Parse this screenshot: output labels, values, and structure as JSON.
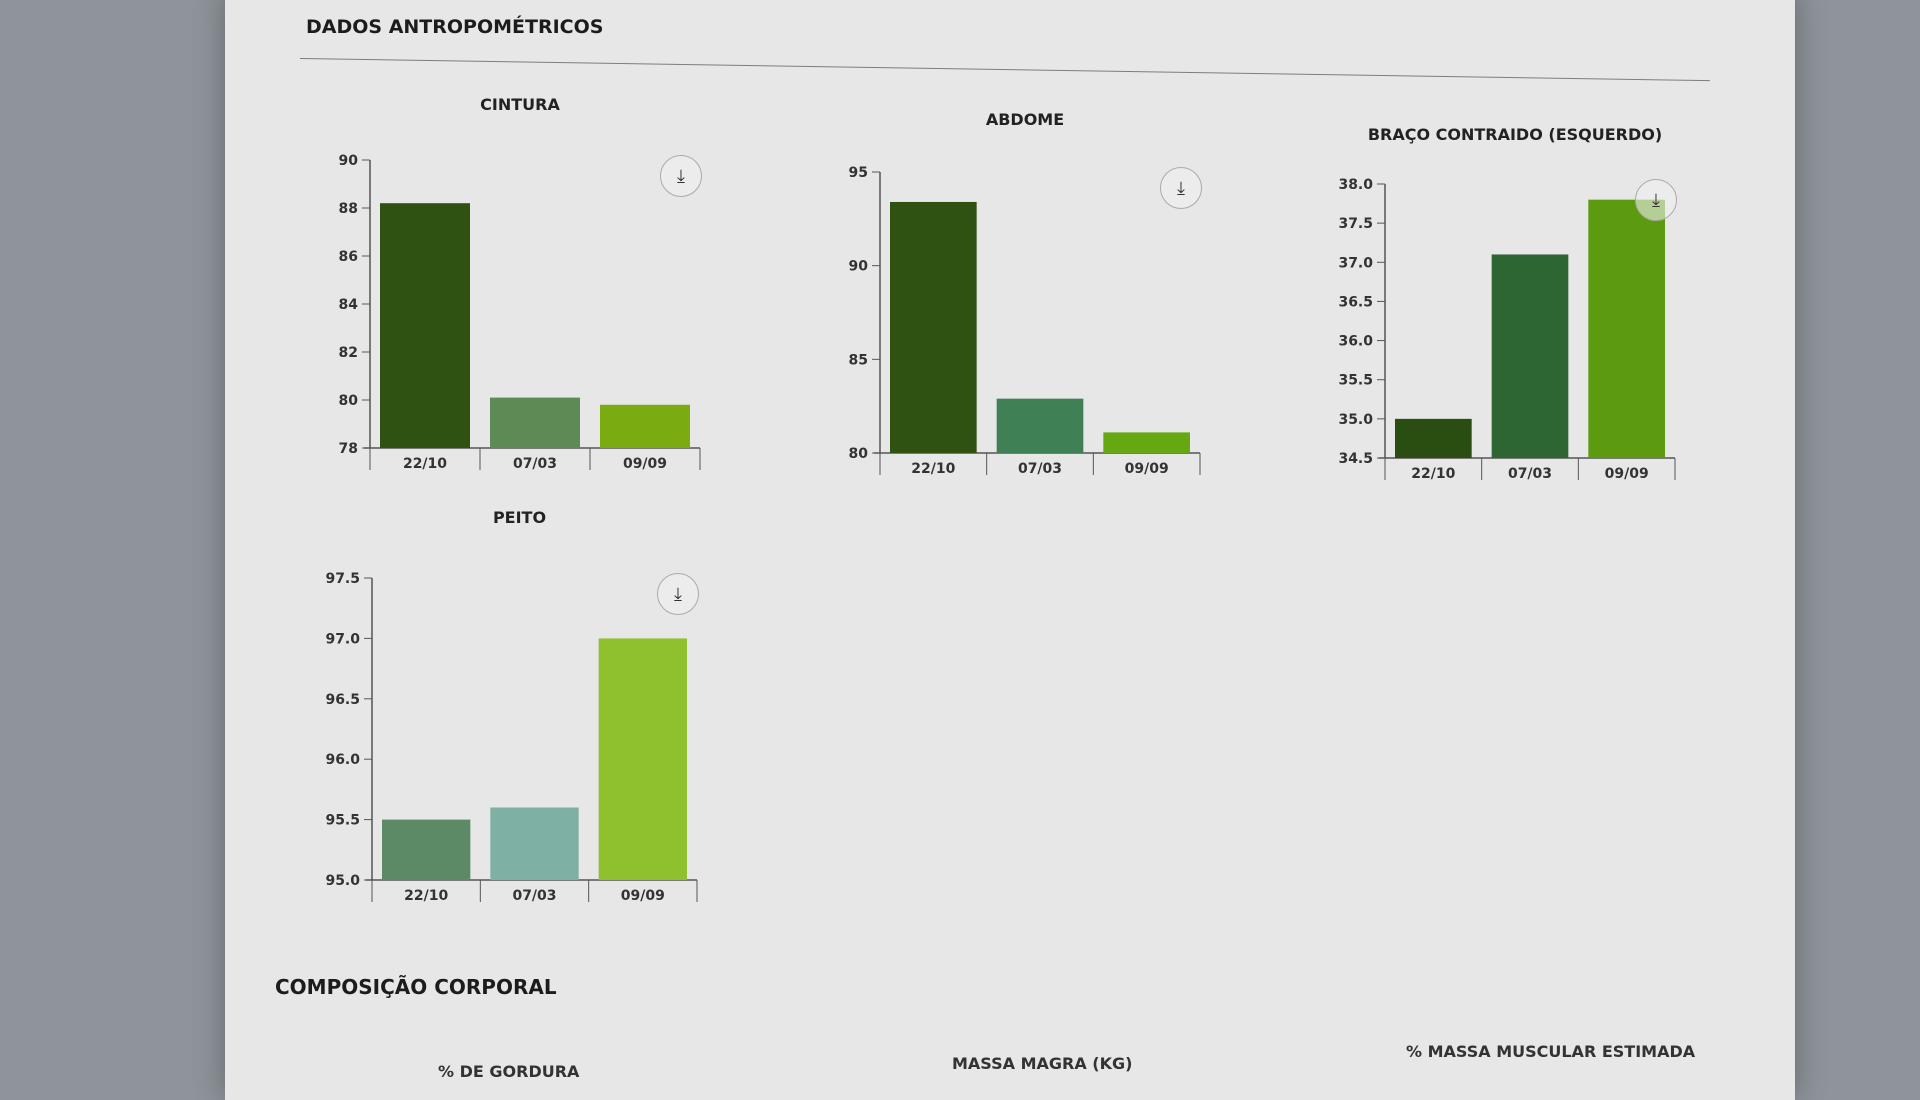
{
  "section_title": "DADOS ANTROPOMÉTRICOS",
  "section2_title": "COMPOSIÇÃO CORPORAL",
  "section2_subtitles": [
    "% DE GORDURA",
    "MASSA MAGRA (KG)",
    "% MASSA MUSCULAR ESTIMADA"
  ],
  "download_icon": "download-icon",
  "chart_data": [
    {
      "type": "bar",
      "title": "CINTURA",
      "categories": [
        "22/10",
        "07/03",
        "09/09"
      ],
      "values": [
        88.2,
        80.1,
        79.8
      ],
      "ylim": [
        78,
        90
      ],
      "yticks": [
        "78",
        "80",
        "82",
        "84",
        "86",
        "88",
        "90"
      ],
      "colors": [
        "#2f5212",
        "#5e8a56",
        "#7aab10"
      ]
    },
    {
      "type": "bar",
      "title": "ABDOME",
      "categories": [
        "22/10",
        "07/03",
        "09/09"
      ],
      "values": [
        93.4,
        82.9,
        81.1
      ],
      "ylim": [
        80,
        95
      ],
      "yticks": [
        "80",
        "85",
        "90",
        "95"
      ],
      "colors": [
        "#2f5212",
        "#3f8055",
        "#66a812"
      ]
    },
    {
      "type": "bar",
      "title": "BRAÇO CONTRAIDO (ESQUERDO)",
      "categories": [
        "22/10",
        "07/03",
        "09/09"
      ],
      "values": [
        35.0,
        37.1,
        37.8
      ],
      "ylim": [
        34.5,
        38.0
      ],
      "yticks": [
        "34.5",
        "35.0",
        "35.5",
        "36.0",
        "36.5",
        "37.0",
        "37.5",
        "38.0"
      ],
      "colors": [
        "#2a4d12",
        "#2e6633",
        "#5c9b10"
      ]
    },
    {
      "type": "bar",
      "title": "PEITO",
      "categories": [
        "22/10",
        "07/03",
        "09/09"
      ],
      "values": [
        95.5,
        95.6,
        97.0
      ],
      "ylim": [
        95.0,
        97.5
      ],
      "yticks": [
        "95.0",
        "95.5",
        "96.0",
        "96.5",
        "97.0",
        "97.5"
      ],
      "colors": [
        "#5c8a66",
        "#7fb0a4",
        "#8fc12e"
      ]
    }
  ]
}
